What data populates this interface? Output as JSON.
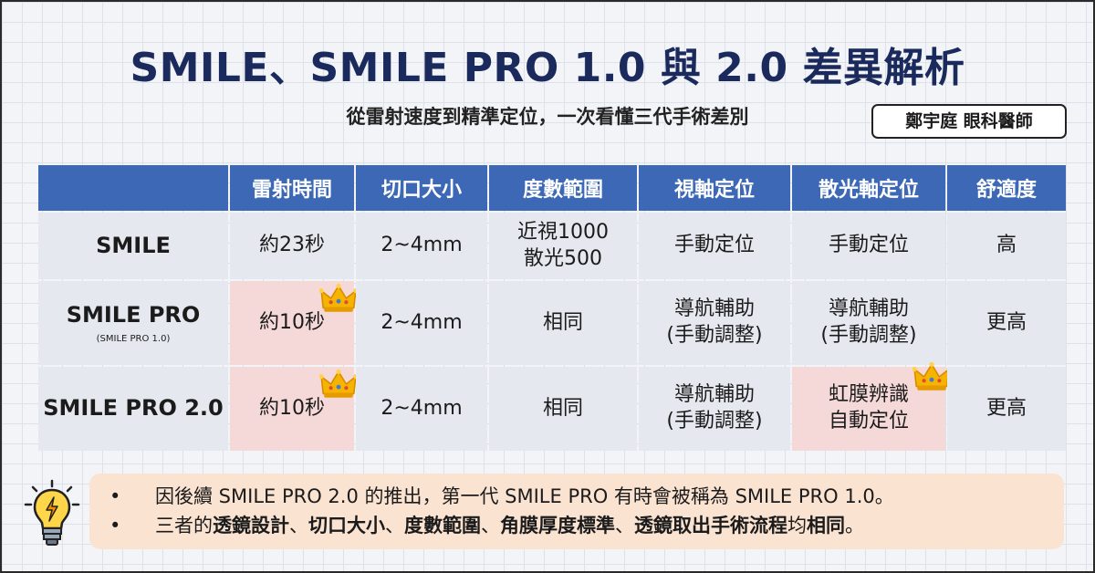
{
  "header": {
    "title": "SMILE、SMILE PRO 1.0 與 2.0 差異解析",
    "subtitle": "從雷射速度到精準定位，一次看懂三代手術差別",
    "author": "鄭宇庭 眼科醫師"
  },
  "table": {
    "columns": [
      "",
      "雷射時間",
      "切口大小",
      "度數範圍",
      "視軸定位",
      "散光軸定位",
      "舒適度"
    ],
    "rows": [
      {
        "name": "SMILE",
        "sub": "",
        "cells": [
          "約23秒",
          "2~4mm",
          "近視1000\n散光500",
          "手動定位",
          "手動定位",
          "高"
        ]
      },
      {
        "name": "SMILE PRO",
        "sub": "(SMILE PRO 1.0)",
        "cells": [
          "約10秒",
          "2~4mm",
          "相同",
          "導航輔助\n(手動調整)",
          "導航輔助\n(手動調整)",
          "更高"
        ]
      },
      {
        "name": "SMILE PRO 2.0",
        "sub": "",
        "cells": [
          "約10秒",
          "2~4mm",
          "相同",
          "導航輔助\n(手動調整)",
          "虹膜辨識\n自動定位",
          "更高"
        ]
      }
    ],
    "highlight_color": "#f5d9d9",
    "header_color": "#3c68b6"
  },
  "notes": {
    "bullet": "•",
    "note1": "因後續 SMILE PRO 2.0 的推出，第一代 SMILE PRO 有時會被稱為 SMILE PRO 1.0。",
    "note2": {
      "p1": "三者的",
      "b1": "透鏡設計",
      "p2": "、",
      "b2": "切口大小",
      "p3": "、",
      "b3": "度數範圍",
      "p4": "、",
      "b4": "角膜厚度標準",
      "p5": "、",
      "b5": "透鏡取出手術流程",
      "p6": "均",
      "b6": "相同",
      "p7": "。"
    }
  },
  "icons": {
    "crown": "crown-icon",
    "bulb": "lightbulb-icon"
  }
}
